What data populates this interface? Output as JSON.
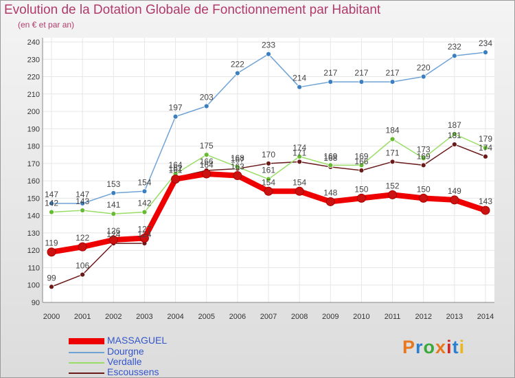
{
  "header": {
    "title": "Evolution de la Dotation Globale de Fonctionnement par Habitant",
    "subtitle": "(en € et par an)"
  },
  "logo": {
    "text": "Proxiti",
    "colors": [
      "#e87820",
      "#2a7fd0",
      "#3aa83a",
      "#e87820",
      "#d02828",
      "#2a7fd0",
      "#e8b820"
    ]
  },
  "chart_data": {
    "type": "line",
    "x": [
      "2000",
      "2001",
      "2002",
      "2003",
      "2004",
      "2005",
      "2006",
      "2007",
      "2008",
      "2009",
      "2010",
      "2011",
      "2012",
      "2013",
      "2014"
    ],
    "ylim": [
      90,
      240
    ],
    "yticks": [
      90,
      100,
      110,
      120,
      130,
      140,
      150,
      160,
      170,
      180,
      190,
      200,
      210,
      220,
      230,
      240
    ],
    "grid": true,
    "legend_position": "bottom-left",
    "series": [
      {
        "name": "MASSAGUEL",
        "color": "#ee0000",
        "marker": "#cc1111",
        "values": [
          119,
          122,
          126,
          127,
          161,
          164,
          163,
          154,
          154,
          148,
          150,
          152,
          150,
          149,
          143
        ]
      },
      {
        "name": "Dourgne",
        "color": "#6fa3d6",
        "marker": "#3b7fc0",
        "values": [
          147,
          147,
          153,
          154,
          197,
          203,
          222,
          233,
          214,
          217,
          217,
          217,
          220,
          232,
          234
        ]
      },
      {
        "name": "Verdalle",
        "color": "#99dd66",
        "marker": "#66bb33",
        "values": [
          142,
          143,
          141,
          142,
          164,
          175,
          168,
          161,
          174,
          169,
          169,
          184,
          173,
          187,
          179
        ]
      },
      {
        "name": "Escoussens",
        "color": "#6b1a1a",
        "marker": "#6b1a1a",
        "values": [
          99,
          106,
          124,
          124,
          162,
          166,
          167,
          170,
          171,
          168,
          166,
          171,
          169,
          181,
          174
        ]
      }
    ],
    "data_labels": [
      {
        "series": 0,
        "labels": [
          "119",
          "122",
          "126",
          "127",
          "161",
          "164",
          "163",
          "154",
          "154",
          "148",
          "150",
          "152",
          "150",
          "149",
          "143"
        ]
      },
      {
        "series": 1,
        "labels": [
          "147",
          "147",
          "153",
          "154",
          "197",
          "203",
          "222",
          "233",
          "214",
          "217",
          "217",
          "217",
          "220",
          "232",
          "234"
        ]
      },
      {
        "series": 2,
        "labels": [
          "142",
          "143",
          "141",
          "142",
          "164",
          "175",
          "168",
          "161",
          "174",
          "169",
          "169",
          "184",
          "173",
          "187",
          "179"
        ]
      },
      {
        "series": 3,
        "labels": [
          "99",
          "106",
          "124",
          "124",
          "162",
          "166",
          "167",
          "170",
          "171",
          "168",
          "166",
          "171",
          "169",
          "181",
          "174"
        ]
      }
    ]
  }
}
